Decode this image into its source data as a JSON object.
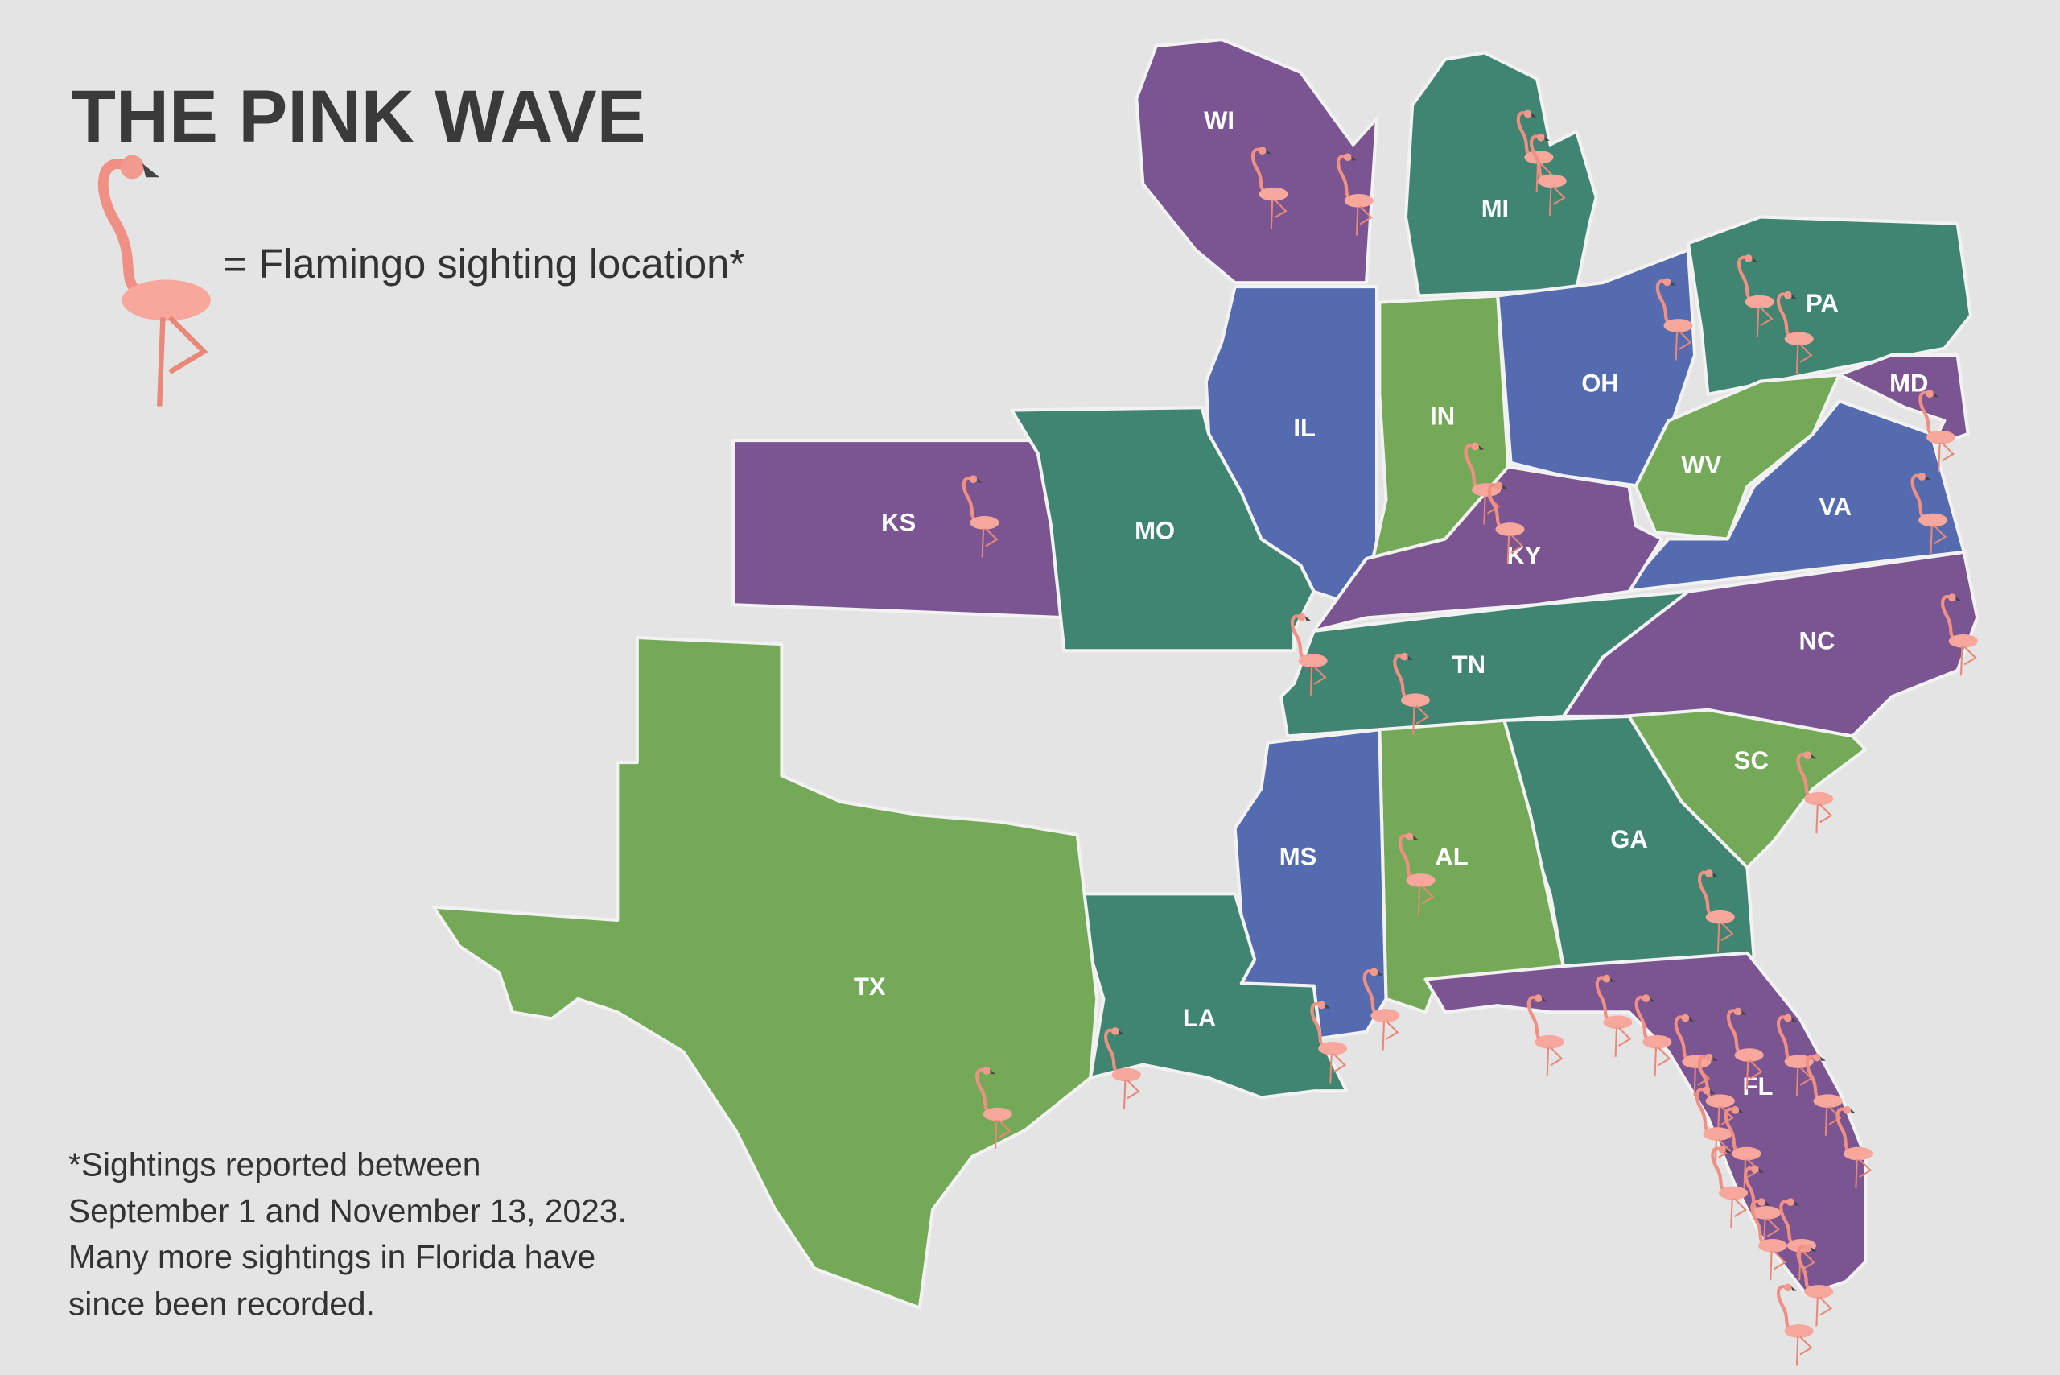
{
  "title": "THE PINK WAVE",
  "legend": {
    "label": "= Flamingo sighting location*"
  },
  "footnote": [
    "*Sightings reported between",
    "September 1 and November 13, 2023.",
    "Many more sightings in Florida have",
    "since been recorded."
  ],
  "states": [
    {
      "abbr": "WI",
      "color": "#7a5591"
    },
    {
      "abbr": "MI",
      "color": "#3f8571"
    },
    {
      "abbr": "IL",
      "color": "#556bb0"
    },
    {
      "abbr": "IN",
      "color": "#74a958"
    },
    {
      "abbr": "OH",
      "color": "#556bb0"
    },
    {
      "abbr": "PA",
      "color": "#3f8571"
    },
    {
      "abbr": "MD",
      "color": "#7a5591"
    },
    {
      "abbr": "WV",
      "color": "#74a958"
    },
    {
      "abbr": "VA",
      "color": "#556bb0"
    },
    {
      "abbr": "KY",
      "color": "#7a5591"
    },
    {
      "abbr": "TN",
      "color": "#3f8571"
    },
    {
      "abbr": "NC",
      "color": "#7a5591"
    },
    {
      "abbr": "SC",
      "color": "#74a958"
    },
    {
      "abbr": "GA",
      "color": "#3f8571"
    },
    {
      "abbr": "AL",
      "color": "#74a958"
    },
    {
      "abbr": "MS",
      "color": "#556bb0"
    },
    {
      "abbr": "LA",
      "color": "#3f8571"
    },
    {
      "abbr": "FL",
      "color": "#7a5591"
    },
    {
      "abbr": "TX",
      "color": "#74a958"
    },
    {
      "abbr": "KS",
      "color": "#7a5591"
    },
    {
      "abbr": "MO",
      "color": "#3f8571"
    }
  ]
}
